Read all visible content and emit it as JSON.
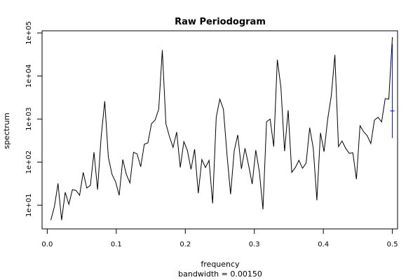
{
  "chart_data": {
    "type": "line",
    "title": "Raw Periodogram",
    "xlabel": "frequency",
    "sub": "bandwidth = 0.00150",
    "ylabel": "spectrum",
    "log_y": true,
    "grid": false,
    "xlim": [
      -0.0075,
      0.5075
    ],
    "ylim_log10": [
      0.45,
      5.05
    ],
    "x_ticks": [
      0.0,
      0.1,
      0.2,
      0.3,
      0.4,
      0.5
    ],
    "x_tick_labels": [
      "0.0",
      "0.1",
      "0.2",
      "0.3",
      "0.4",
      "0.5"
    ],
    "y_ticks": [
      1,
      2,
      3,
      4,
      5
    ],
    "y_tick_labels": [
      "1e+01",
      "1e+02",
      "1e+03",
      "1e+04",
      "1e+05"
    ],
    "line_color": "#000000",
    "ci_bar": {
      "x": 0.5,
      "color": "#0000ff",
      "upper_log10": 4.75,
      "center_log10": 3.19,
      "lower_log10": 2.56
    },
    "series": [
      {
        "x": [
          0.0052,
          0.0104,
          0.0156,
          0.0208,
          0.026,
          0.0313,
          0.0365,
          0.0417,
          0.0469,
          0.0521,
          0.0573,
          0.0625,
          0.0677,
          0.0729,
          0.0781,
          0.0833,
          0.0885,
          0.0938,
          0.099,
          0.1042,
          0.1094,
          0.1146,
          0.1198,
          0.125,
          0.1302,
          0.1354,
          0.1406,
          0.1458,
          0.151,
          0.1563,
          0.1615,
          0.1667,
          0.1719,
          0.1771,
          0.1823,
          0.1875,
          0.1927,
          0.1979,
          0.2031,
          0.2083,
          0.2135,
          0.2188,
          0.224,
          0.2292,
          0.2344,
          0.2396,
          0.2448,
          0.25,
          0.2552,
          0.2604,
          0.2656,
          0.2708,
          0.276,
          0.2813,
          0.2865,
          0.2917,
          0.2969,
          0.3021,
          0.3073,
          0.3125,
          0.3177,
          0.3229,
          0.3281,
          0.3333,
          0.3385,
          0.3438,
          0.349,
          0.3542,
          0.3594,
          0.3646,
          0.3698,
          0.375,
          0.3802,
          0.3854,
          0.3906,
          0.3958,
          0.401,
          0.4063,
          0.4115,
          0.4167,
          0.4219,
          0.4271,
          0.4323,
          0.4375,
          0.4427,
          0.4479,
          0.4531,
          0.4583,
          0.4635,
          0.4688,
          0.474,
          0.4792,
          0.4844,
          0.4896,
          0.4948,
          0.5
        ],
        "y": [
          4.5,
          9.3,
          32,
          4.5,
          20,
          10.5,
          23,
          22,
          17,
          58,
          25,
          29,
          170,
          23,
          390,
          2600,
          130,
          52,
          35,
          17,
          115,
          52,
          33,
          170,
          155,
          78,
          260,
          280,
          780,
          950,
          1700,
          40000,
          780,
          390,
          220,
          500,
          75,
          300,
          185,
          68,
          200,
          19,
          115,
          75,
          110,
          11,
          1100,
          2900,
          1700,
          150,
          18,
          180,
          430,
          70,
          210,
          85,
          31,
          190,
          60,
          8,
          870,
          1000,
          230,
          24000,
          5500,
          180,
          1600,
          58,
          75,
          110,
          72,
          95,
          630,
          210,
          13,
          480,
          175,
          1000,
          3500,
          31000,
          230,
          310,
          210,
          160,
          165,
          40,
          700,
          510,
          410,
          270,
          950,
          1100,
          860,
          3000,
          2900,
          80000
        ]
      }
    ]
  }
}
